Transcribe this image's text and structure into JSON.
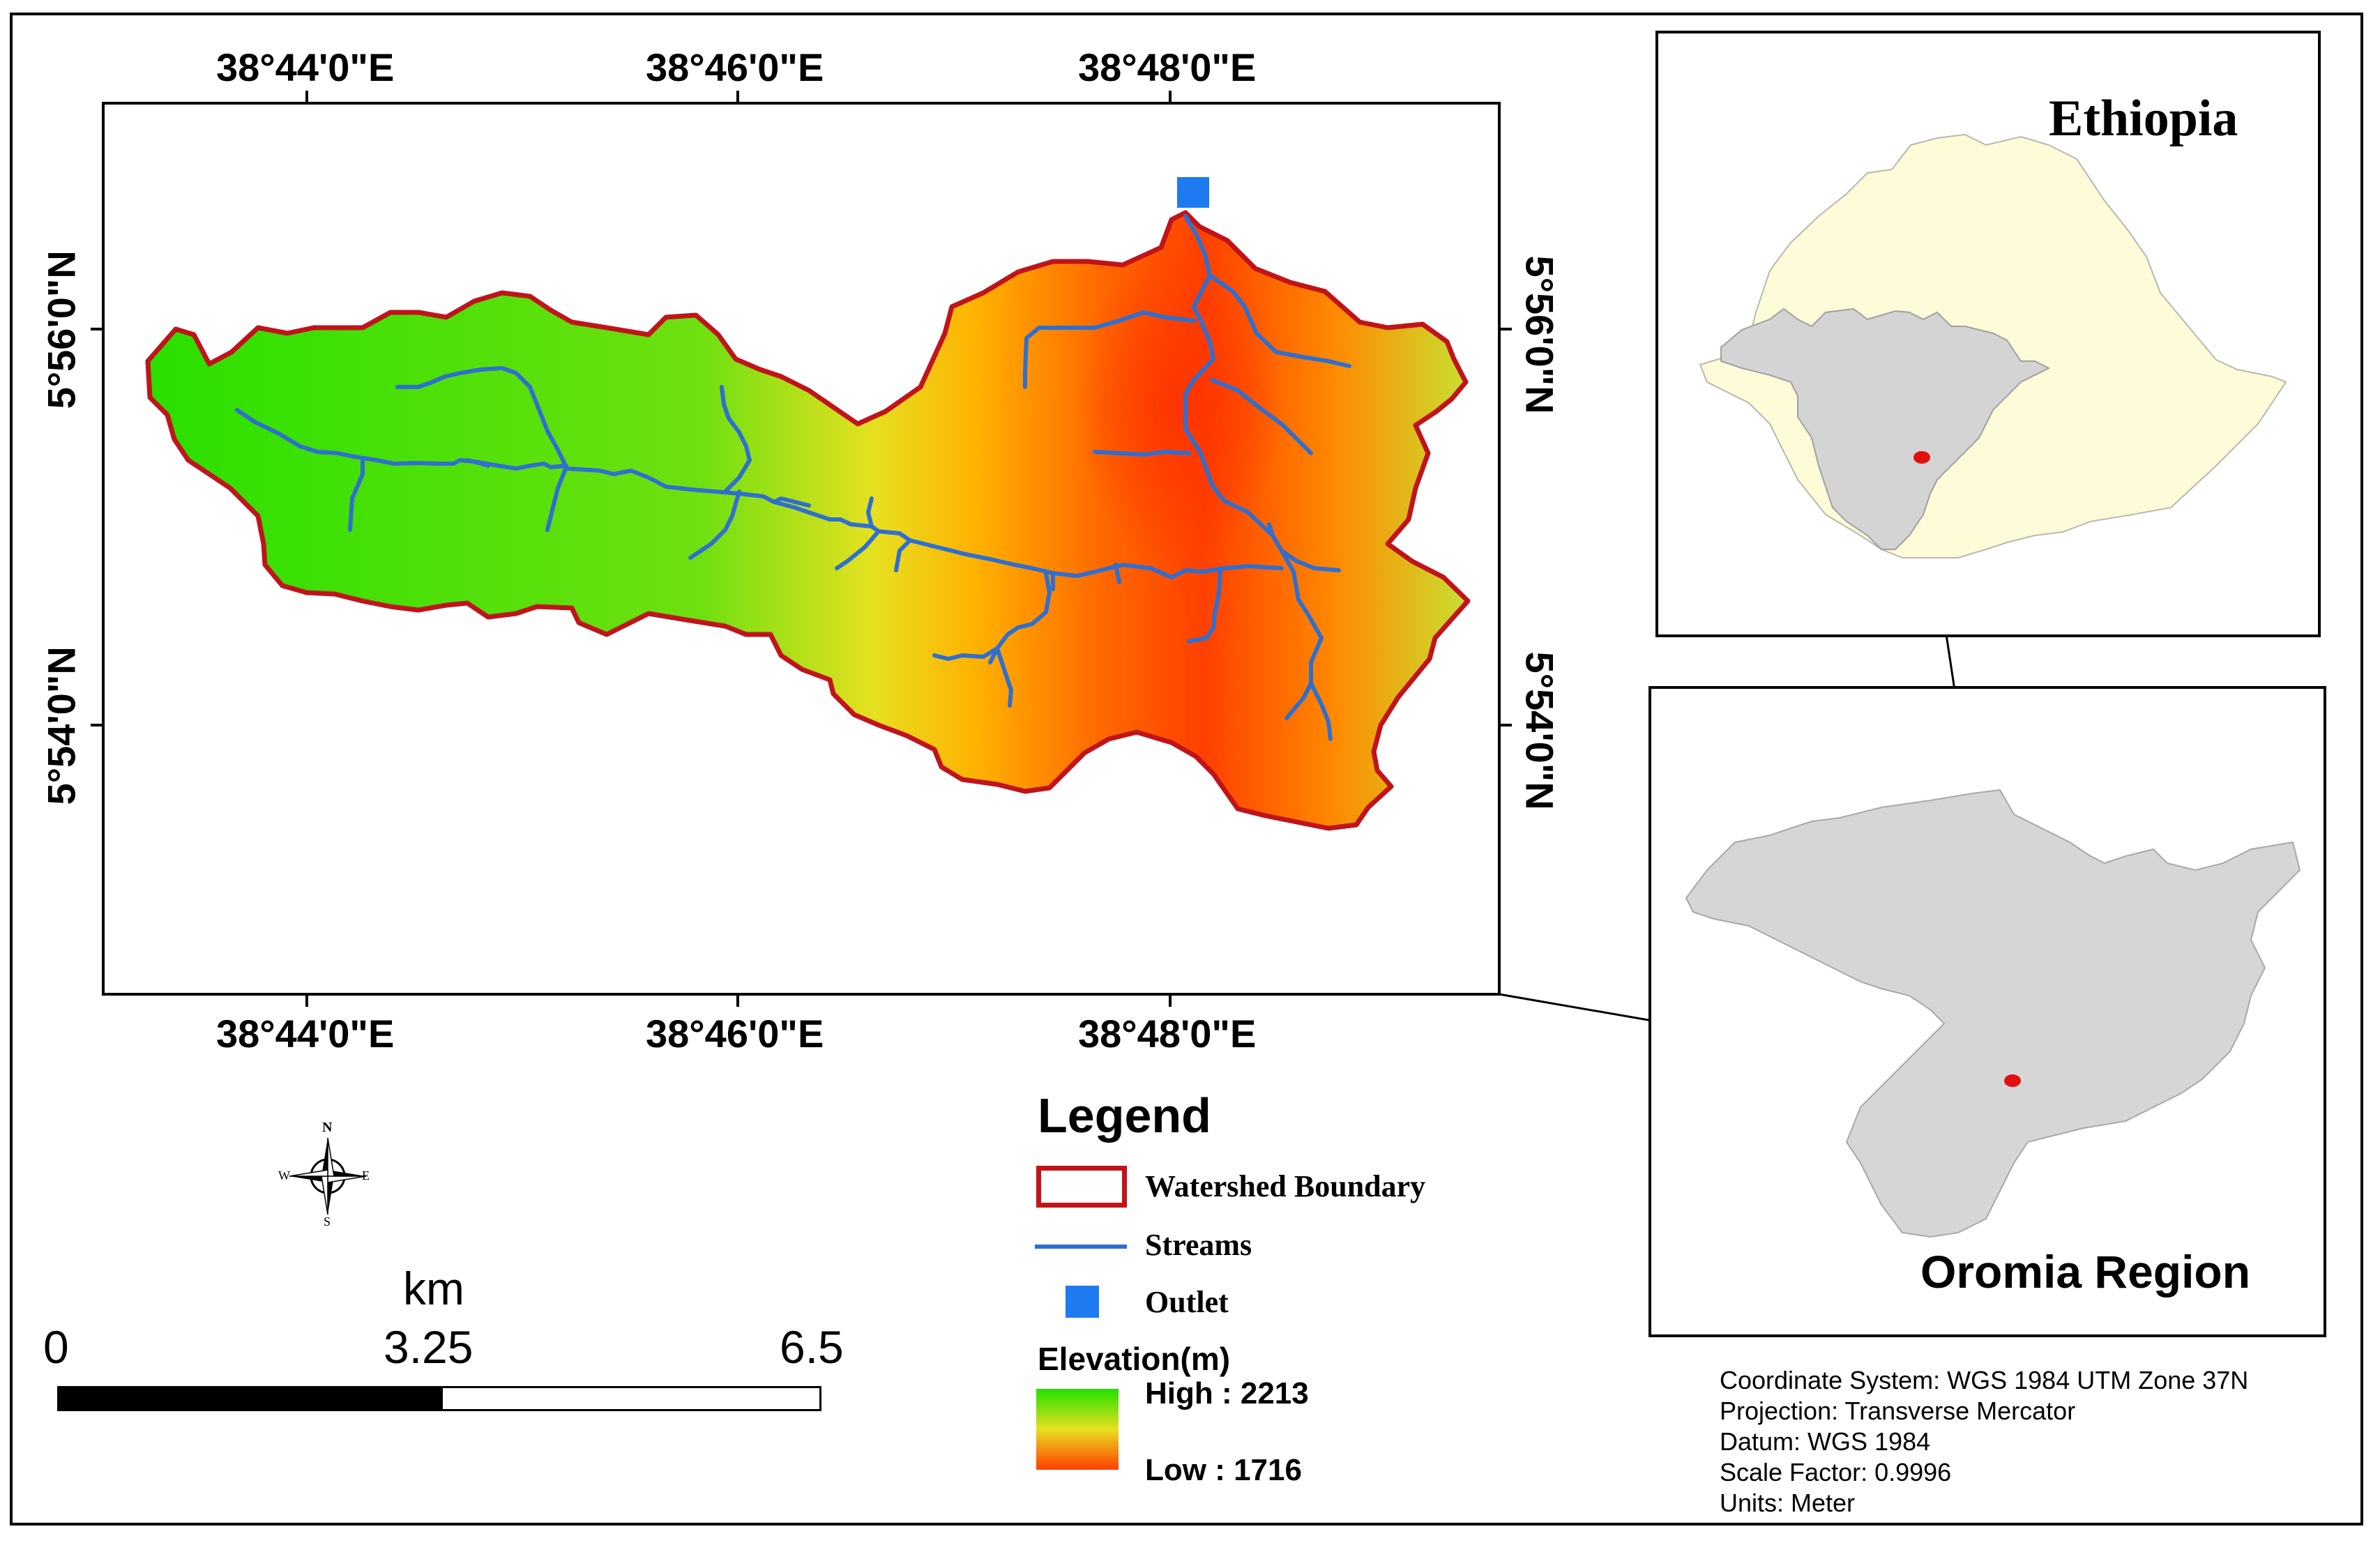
{
  "main_map": {
    "top_lon_labels": [
      "38°44'0\"E",
      "38°46'0\"E",
      "38°48'0\"E"
    ],
    "bottom_lon_labels": [
      "38°44'0\"E",
      "38°46'0\"E",
      "38°48'0\"E"
    ],
    "left_lat_labels": [
      "5°56'0\"N",
      "5°54'0\"N"
    ],
    "right_lat_labels": [
      "5°56'0\"N",
      "5°54'0\"N"
    ],
    "colors": {
      "boundary": "#c0141a",
      "streams": "#2f6fd0",
      "outlet": "#1e7af0",
      "high": "#ff3d00",
      "low": "#23e000"
    }
  },
  "legend": {
    "title": "Legend",
    "watershed_label": "Watershed Boundary",
    "streams_label": "Streams",
    "outlet_label": "Outlet",
    "elevation_title": "Elevation(m)",
    "high_label": "High : 2213",
    "low_label": "Low : 1716"
  },
  "north_arrow": {
    "n": "N",
    "s": "S",
    "e": "E",
    "w": "W",
    "icon": "compass-rose-icon"
  },
  "scale_bar": {
    "unit": "km",
    "ticks": [
      "0",
      "3.25",
      "6.5"
    ]
  },
  "insets": {
    "ethiopia": {
      "title": "Ethiopia",
      "fill": "#fdfbd8",
      "region_fill": "#d3d3d3",
      "marker": "#e01010"
    },
    "oromia": {
      "title": "Oromia Region",
      "fill": "#d3d3d3",
      "marker": "#e01010"
    }
  },
  "info_lines": [
    "Coordinate System: WGS 1984 UTM Zone 37N",
    "Projection: Transverse Mercator",
    "Datum: WGS 1984",
    "Scale Factor: 0.9996",
    "Units: Meter"
  ]
}
